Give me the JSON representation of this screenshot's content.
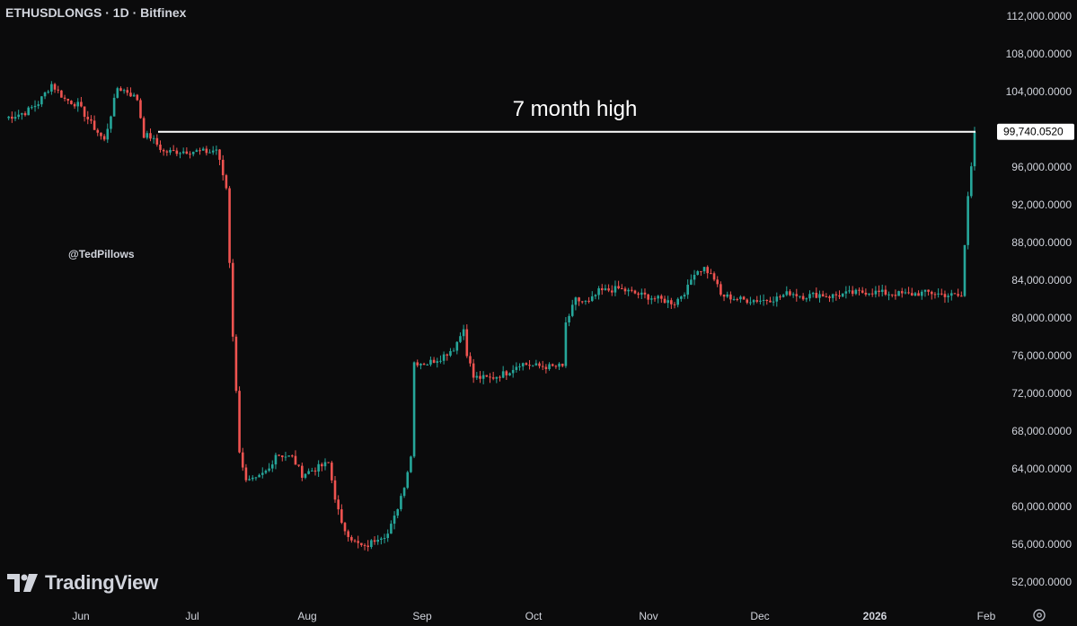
{
  "header": {
    "symbol_title": "ETHUSDLONGS · 1D · Bitfinex"
  },
  "watermark": {
    "user": "@TedPillows",
    "brand": "TradingView"
  },
  "annotation": {
    "text": "7 month high"
  },
  "colors": {
    "up": "#26a69a",
    "down": "#ef5350",
    "background": "#0b0b0c",
    "text": "#d1d4dc",
    "line": "#ffffff"
  },
  "icons": {
    "logo": "tradingview-logo-icon",
    "settings": "gear-icon"
  },
  "chart_data": {
    "type": "candlestick",
    "symbol": "ETHUSDLONGS",
    "interval": "1D",
    "exchange": "Bitfinex",
    "ylim": [
      50000,
      114000
    ],
    "y_ticks": [
      "112,000.0000",
      "108,000.0000",
      "104,000.0000",
      "96,000.0000",
      "92,000.0000",
      "88,000.0000",
      "84,000.0000",
      "80,000.0000",
      "76,000.0000",
      "72,000.0000",
      "68,000.0000",
      "64,000.0000",
      "60,000.0000",
      "56,000.0000",
      "52,000.0000"
    ],
    "x_ticks": [
      "Jun",
      "Jul",
      "Aug",
      "Sep",
      "Oct",
      "Nov",
      "Dec",
      "2026",
      "Feb"
    ],
    "price_label": "99,740.0520",
    "horizontal_line": {
      "value": 99740,
      "label": "7 month high"
    },
    "waypoints": [
      [
        0,
        101200
      ],
      [
        6,
        101800
      ],
      [
        10,
        102800
      ],
      [
        14,
        104800
      ],
      [
        18,
        103200
      ],
      [
        22,
        102600
      ],
      [
        26,
        100600
      ],
      [
        30,
        98800
      ],
      [
        34,
        104400
      ],
      [
        37,
        104000
      ],
      [
        40,
        103200
      ],
      [
        42,
        99400
      ],
      [
        44,
        99200
      ],
      [
        48,
        97600
      ],
      [
        55,
        97700
      ],
      [
        62,
        97600
      ],
      [
        64,
        97900
      ],
      [
        67,
        93800
      ],
      [
        69,
        78200
      ],
      [
        71,
        66000
      ],
      [
        73,
        62600
      ],
      [
        76,
        62800
      ],
      [
        80,
        64000
      ],
      [
        82,
        65600
      ],
      [
        87,
        65200
      ],
      [
        90,
        63400
      ],
      [
        94,
        64000
      ],
      [
        98,
        64600
      ],
      [
        100,
        61000
      ],
      [
        102,
        58000
      ],
      [
        106,
        56200
      ],
      [
        109,
        55600
      ],
      [
        113,
        56800
      ],
      [
        116,
        57100
      ],
      [
        118,
        58800
      ],
      [
        121,
        62300
      ],
      [
        123,
        65300
      ],
      [
        124,
        75300
      ],
      [
        128,
        75200
      ],
      [
        132,
        75800
      ],
      [
        136,
        76800
      ],
      [
        139,
        78800
      ],
      [
        140,
        76300
      ],
      [
        142,
        73700
      ],
      [
        147,
        73600
      ],
      [
        152,
        74200
      ],
      [
        156,
        75200
      ],
      [
        161,
        74900
      ],
      [
        166,
        74800
      ],
      [
        169,
        74900
      ],
      [
        170,
        79400
      ],
      [
        173,
        81900
      ],
      [
        177,
        81600
      ],
      [
        180,
        82800
      ],
      [
        186,
        83100
      ],
      [
        192,
        82500
      ],
      [
        198,
        82000
      ],
      [
        203,
        81600
      ],
      [
        207,
        83200
      ],
      [
        209,
        84900
      ],
      [
        212,
        85300
      ],
      [
        215,
        84200
      ],
      [
        217,
        82400
      ],
      [
        224,
        81900
      ],
      [
        230,
        81900
      ],
      [
        234,
        82100
      ],
      [
        238,
        82700
      ],
      [
        242,
        82300
      ],
      [
        247,
        82500
      ],
      [
        250,
        82300
      ],
      [
        256,
        82600
      ],
      [
        262,
        82800
      ],
      [
        268,
        82600
      ],
      [
        274,
        82500
      ],
      [
        280,
        82700
      ],
      [
        284,
        82500
      ],
      [
        290,
        82300
      ],
      [
        292,
        93000
      ],
      [
        294,
        99740
      ]
    ]
  }
}
